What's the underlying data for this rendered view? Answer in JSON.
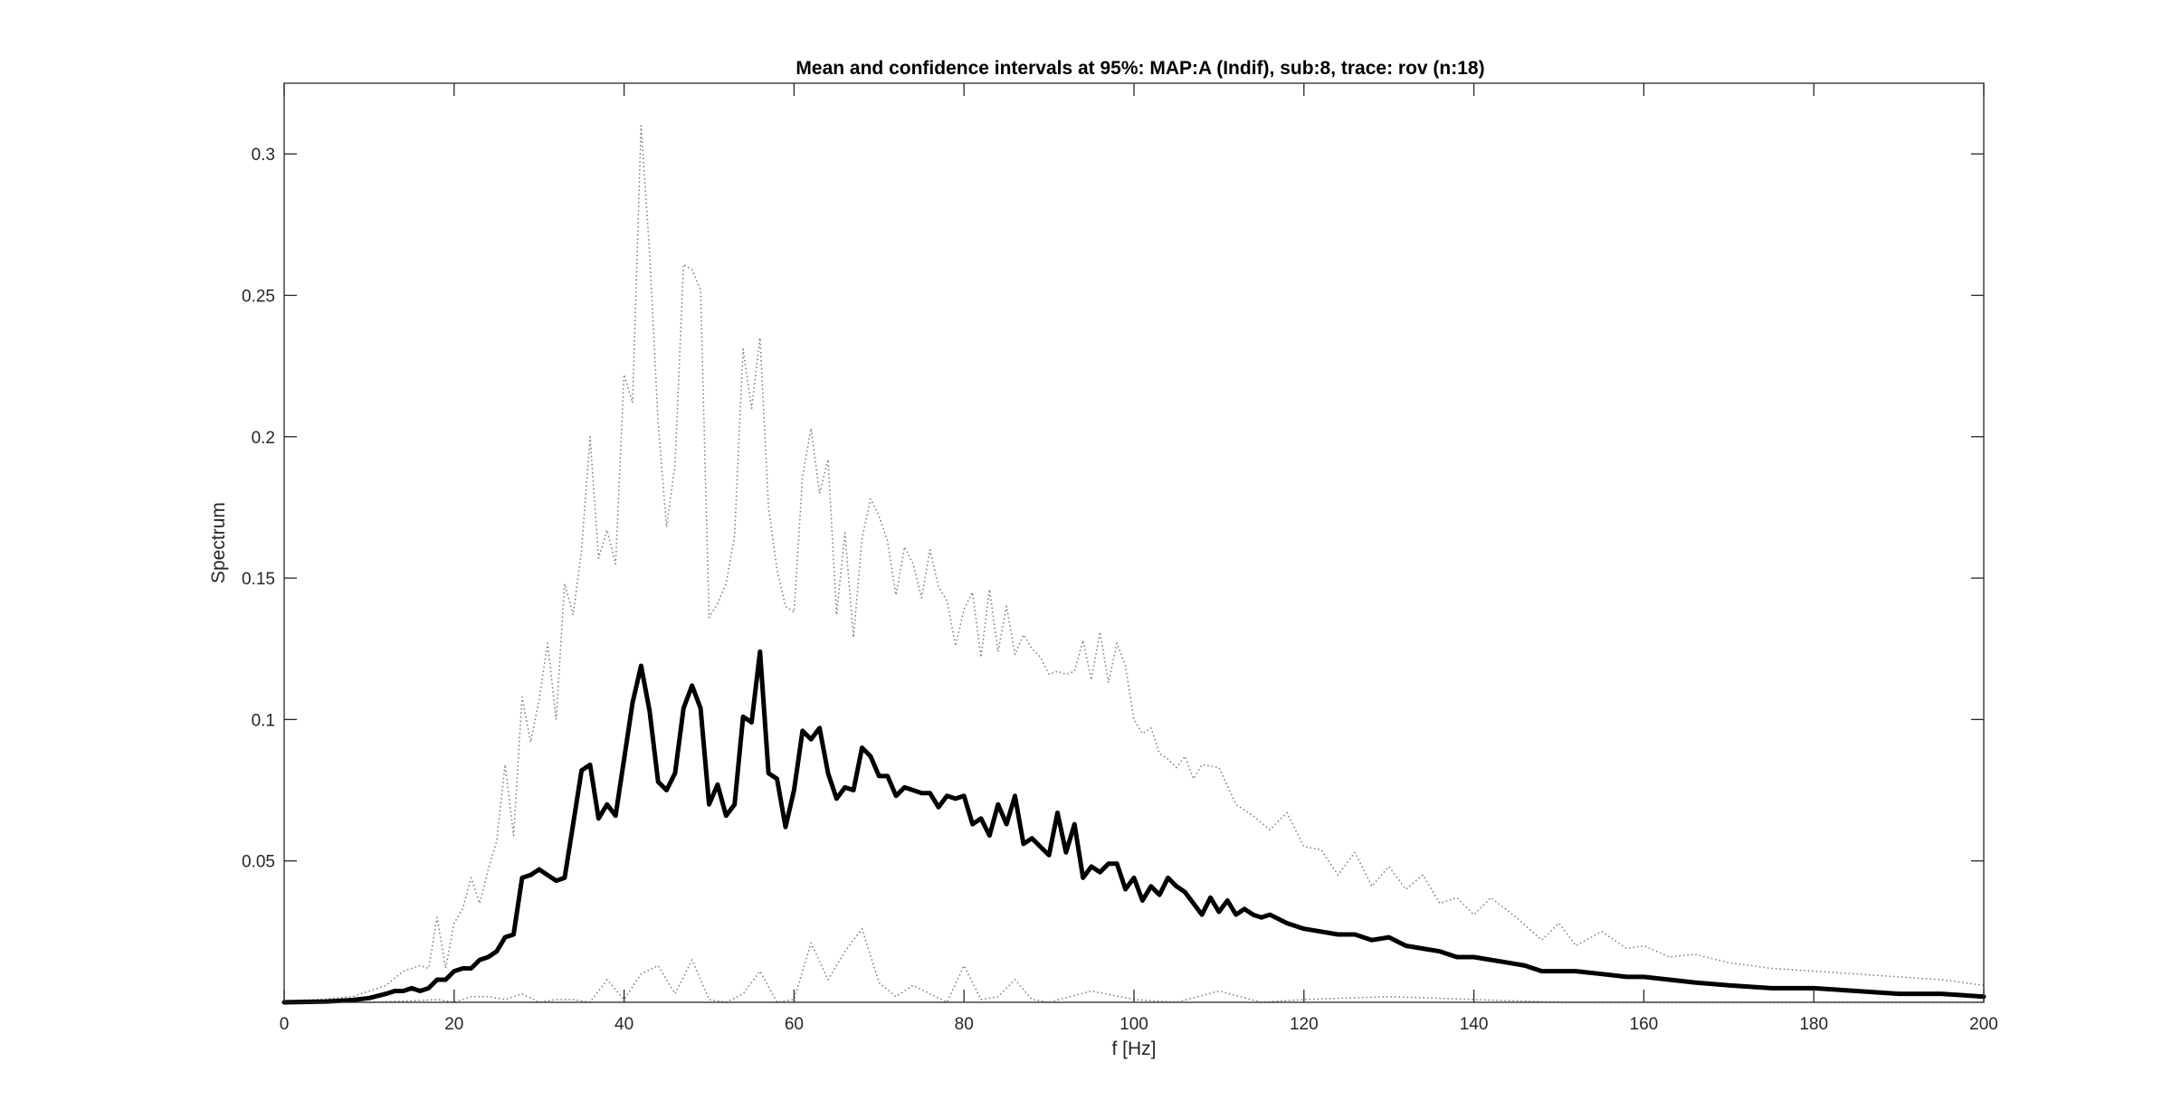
{
  "chart_data": {
    "type": "line",
    "title": "Mean and confidence intervals at 95%: MAP:A (Indif), sub:8, trace: rov (n:18)",
    "xlabel": "f [Hz]",
    "ylabel": "Spectrum",
    "xlim": [
      0,
      200
    ],
    "ylim": [
      0,
      0.325
    ],
    "x_ticks": [
      0,
      20,
      40,
      60,
      80,
      100,
      120,
      140,
      160,
      180,
      200
    ],
    "x_tick_labels": [
      "0",
      "20",
      "40",
      "60",
      "80",
      "100",
      "120",
      "140",
      "160",
      "180",
      "200"
    ],
    "y_ticks": [
      0.05,
      0.1,
      0.15,
      0.2,
      0.25,
      0.3
    ],
    "y_tick_labels": [
      "0.05",
      "0.1",
      "0.15",
      "0.2",
      "0.25",
      "0.3"
    ],
    "grid": false,
    "legend": "none",
    "series": [
      {
        "style": "upper-ci",
        "color": "#7f7f7f",
        "dash": "dotted",
        "x": [
          0,
          4,
          8,
          10,
          12,
          14,
          16,
          17,
          18,
          19,
          20,
          21,
          22,
          23,
          24,
          25,
          26,
          27,
          28,
          29,
          30,
          31,
          32,
          33,
          34,
          35,
          36,
          37,
          38,
          39,
          40,
          41,
          42,
          43,
          44,
          45,
          46,
          47,
          48,
          49,
          50,
          51,
          52,
          53,
          54,
          55,
          56,
          57,
          58,
          59,
          60,
          61,
          62,
          63,
          64,
          65,
          66,
          67,
          68,
          69,
          70,
          71,
          72,
          73,
          74,
          75,
          76,
          77,
          78,
          79,
          80,
          81,
          82,
          83,
          84,
          85,
          86,
          87,
          88,
          89,
          90,
          91,
          92,
          93,
          94,
          95,
          96,
          97,
          98,
          99,
          100,
          101,
          102,
          103,
          104,
          105,
          106,
          107,
          108,
          110,
          112,
          114,
          116,
          118,
          120,
          122,
          124,
          126,
          128,
          130,
          132,
          134,
          136,
          138,
          140,
          142,
          145,
          148,
          150,
          152,
          155,
          158,
          160,
          163,
          166,
          170,
          175,
          180,
          185,
          190,
          195,
          200
        ],
        "y": [
          0.0005,
          0.001,
          0.002,
          0.004,
          0.006,
          0.011,
          0.013,
          0.012,
          0.03,
          0.012,
          0.028,
          0.033,
          0.044,
          0.035,
          0.047,
          0.057,
          0.084,
          0.059,
          0.108,
          0.092,
          0.107,
          0.127,
          0.1,
          0.148,
          0.137,
          0.16,
          0.2,
          0.157,
          0.167,
          0.155,
          0.222,
          0.212,
          0.31,
          0.265,
          0.205,
          0.168,
          0.19,
          0.261,
          0.259,
          0.252,
          0.136,
          0.141,
          0.148,
          0.165,
          0.231,
          0.21,
          0.235,
          0.175,
          0.153,
          0.14,
          0.138,
          0.186,
          0.203,
          0.18,
          0.192,
          0.137,
          0.166,
          0.129,
          0.164,
          0.178,
          0.172,
          0.163,
          0.144,
          0.161,
          0.155,
          0.143,
          0.16,
          0.147,
          0.142,
          0.126,
          0.139,
          0.145,
          0.122,
          0.146,
          0.124,
          0.14,
          0.123,
          0.13,
          0.125,
          0.122,
          0.116,
          0.117,
          0.116,
          0.117,
          0.128,
          0.114,
          0.131,
          0.113,
          0.127,
          0.119,
          0.1,
          0.095,
          0.097,
          0.088,
          0.086,
          0.083,
          0.087,
          0.079,
          0.084,
          0.083,
          0.07,
          0.066,
          0.061,
          0.067,
          0.055,
          0.054,
          0.045,
          0.053,
          0.041,
          0.048,
          0.04,
          0.045,
          0.035,
          0.037,
          0.031,
          0.037,
          0.03,
          0.022,
          0.028,
          0.02,
          0.025,
          0.019,
          0.02,
          0.016,
          0.017,
          0.014,
          0.012,
          0.011,
          0.01,
          0.009,
          0.008,
          0.006
        ]
      },
      {
        "style": "mean",
        "color": "#000000",
        "dash": "solid",
        "x": [
          0,
          5,
          8,
          10,
          12,
          13,
          14,
          15,
          16,
          17,
          18,
          19,
          20,
          21,
          22,
          23,
          24,
          25,
          26,
          27,
          28,
          29,
          30,
          31,
          32,
          33,
          34,
          35,
          36,
          37,
          38,
          39,
          40,
          41,
          42,
          43,
          44,
          45,
          46,
          47,
          48,
          49,
          50,
          51,
          52,
          53,
          54,
          55,
          56,
          57,
          58,
          59,
          60,
          61,
          62,
          63,
          64,
          65,
          66,
          67,
          68,
          69,
          70,
          71,
          72,
          73,
          74,
          75,
          76,
          77,
          78,
          79,
          80,
          81,
          82,
          83,
          84,
          85,
          86,
          87,
          88,
          89,
          90,
          91,
          92,
          93,
          94,
          95,
          96,
          97,
          98,
          99,
          100,
          101,
          102,
          103,
          104,
          105,
          106,
          107,
          108,
          109,
          110,
          111,
          112,
          113,
          114,
          115,
          116,
          118,
          120,
          122,
          124,
          126,
          128,
          130,
          132,
          134,
          136,
          138,
          140,
          142,
          144,
          146,
          148,
          150,
          152,
          155,
          158,
          160,
          163,
          166,
          170,
          175,
          180,
          185,
          190,
          195,
          200
        ],
        "y": [
          0.0,
          0.0003,
          0.0008,
          0.0015,
          0.003,
          0.004,
          0.004,
          0.005,
          0.004,
          0.005,
          0.008,
          0.008,
          0.011,
          0.012,
          0.012,
          0.015,
          0.016,
          0.018,
          0.023,
          0.024,
          0.044,
          0.045,
          0.047,
          0.045,
          0.043,
          0.044,
          0.063,
          0.082,
          0.084,
          0.065,
          0.07,
          0.066,
          0.086,
          0.106,
          0.119,
          0.103,
          0.078,
          0.075,
          0.081,
          0.104,
          0.112,
          0.104,
          0.07,
          0.077,
          0.066,
          0.07,
          0.101,
          0.099,
          0.124,
          0.081,
          0.079,
          0.062,
          0.075,
          0.096,
          0.093,
          0.097,
          0.081,
          0.072,
          0.076,
          0.075,
          0.09,
          0.087,
          0.08,
          0.08,
          0.073,
          0.076,
          0.075,
          0.074,
          0.074,
          0.069,
          0.073,
          0.072,
          0.073,
          0.063,
          0.065,
          0.059,
          0.07,
          0.063,
          0.073,
          0.056,
          0.058,
          0.055,
          0.052,
          0.067,
          0.053,
          0.063,
          0.044,
          0.048,
          0.046,
          0.049,
          0.049,
          0.04,
          0.044,
          0.036,
          0.041,
          0.038,
          0.044,
          0.041,
          0.039,
          0.035,
          0.031,
          0.037,
          0.032,
          0.036,
          0.031,
          0.033,
          0.031,
          0.03,
          0.031,
          0.028,
          0.026,
          0.025,
          0.024,
          0.024,
          0.022,
          0.023,
          0.02,
          0.019,
          0.018,
          0.016,
          0.016,
          0.015,
          0.014,
          0.013,
          0.011,
          0.011,
          0.011,
          0.01,
          0.009,
          0.009,
          0.008,
          0.007,
          0.006,
          0.005,
          0.005,
          0.004,
          0.003,
          0.003,
          0.002
        ]
      },
      {
        "style": "lower-ci",
        "color": "#7f7f7f",
        "dash": "dotted",
        "x": [
          0,
          10,
          15,
          18,
          20,
          22,
          24,
          26,
          28,
          30,
          32,
          34,
          36,
          38,
          40,
          42,
          44,
          46,
          48,
          50,
          52,
          54,
          56,
          58,
          60,
          62,
          64,
          66,
          68,
          70,
          72,
          74,
          76,
          78,
          80,
          82,
          84,
          86,
          88,
          90,
          95,
          100,
          105,
          110,
          115,
          120,
          130,
          140,
          150,
          160,
          170,
          180,
          190,
          200
        ],
        "y": [
          0.0,
          0.0,
          0.0005,
          0.001,
          0.0,
          0.002,
          0.002,
          0.001,
          0.003,
          0.0,
          0.001,
          0.001,
          0.0,
          0.008,
          0.001,
          0.01,
          0.013,
          0.003,
          0.015,
          0.001,
          0.0,
          0.003,
          0.011,
          0.0,
          0.001,
          0.021,
          0.008,
          0.018,
          0.026,
          0.007,
          0.002,
          0.006,
          0.003,
          0.0,
          0.013,
          0.001,
          0.002,
          0.008,
          0.001,
          0.0,
          0.004,
          0.001,
          0.0,
          0.004,
          0.0,
          0.001,
          0.002,
          0.001,
          0.0,
          0.0,
          0.0,
          0.0,
          0.0,
          0.0
        ]
      }
    ]
  }
}
